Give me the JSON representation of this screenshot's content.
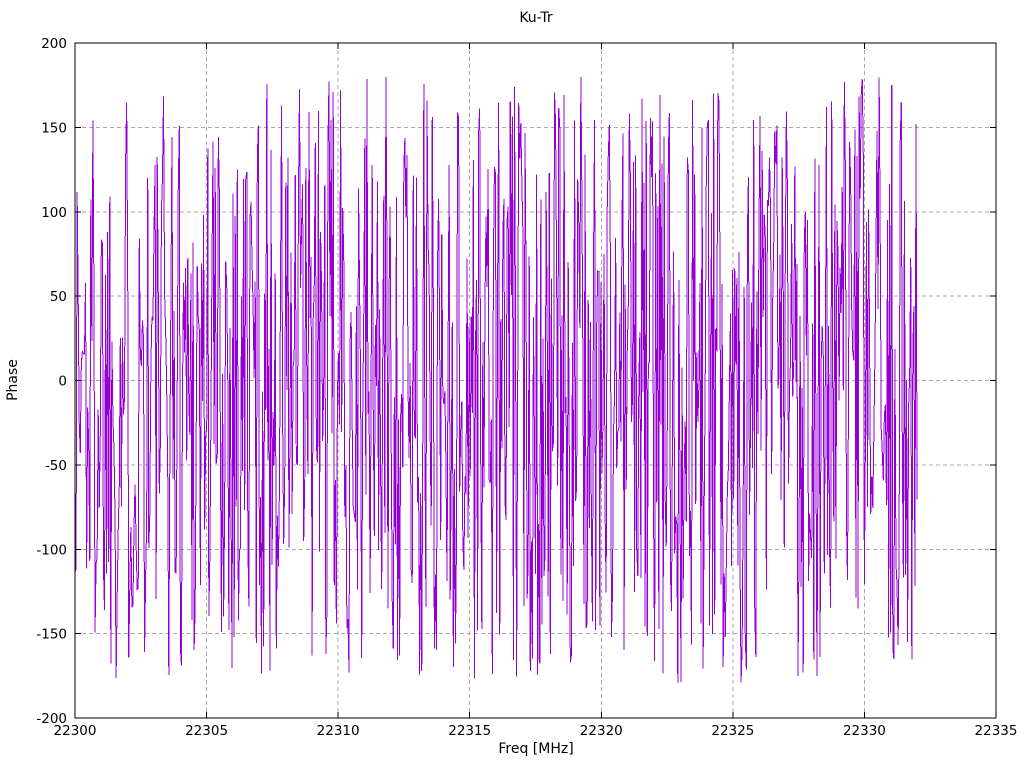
{
  "window": {
    "background": "#ffffff"
  },
  "chart_data": {
    "type": "line",
    "title": "Ku-Tr",
    "xlabel": "Freq [MHz]",
    "ylabel": "Phase",
    "xlim": [
      22300,
      22335
    ],
    "ylim": [
      -200,
      200
    ],
    "xticks": [
      22300,
      22305,
      22310,
      22315,
      22320,
      22325,
      22330,
      22335
    ],
    "yticks": [
      -200,
      -150,
      -100,
      -50,
      0,
      50,
      100,
      150,
      200
    ],
    "grid": true,
    "grid_style": "dashed",
    "grid_color": "#a9a9a9",
    "axis_color": "#000000",
    "legend_position": "none",
    "series": [
      {
        "name": "phase",
        "color": "#9400d3",
        "x_start": 22300,
        "x_end": 22332,
        "n_points": 800,
        "y_min": -180,
        "y_max": 180,
        "synthesis": "uniform-random-wrapped-phase-noise",
        "seed": 1337
      }
    ]
  }
}
